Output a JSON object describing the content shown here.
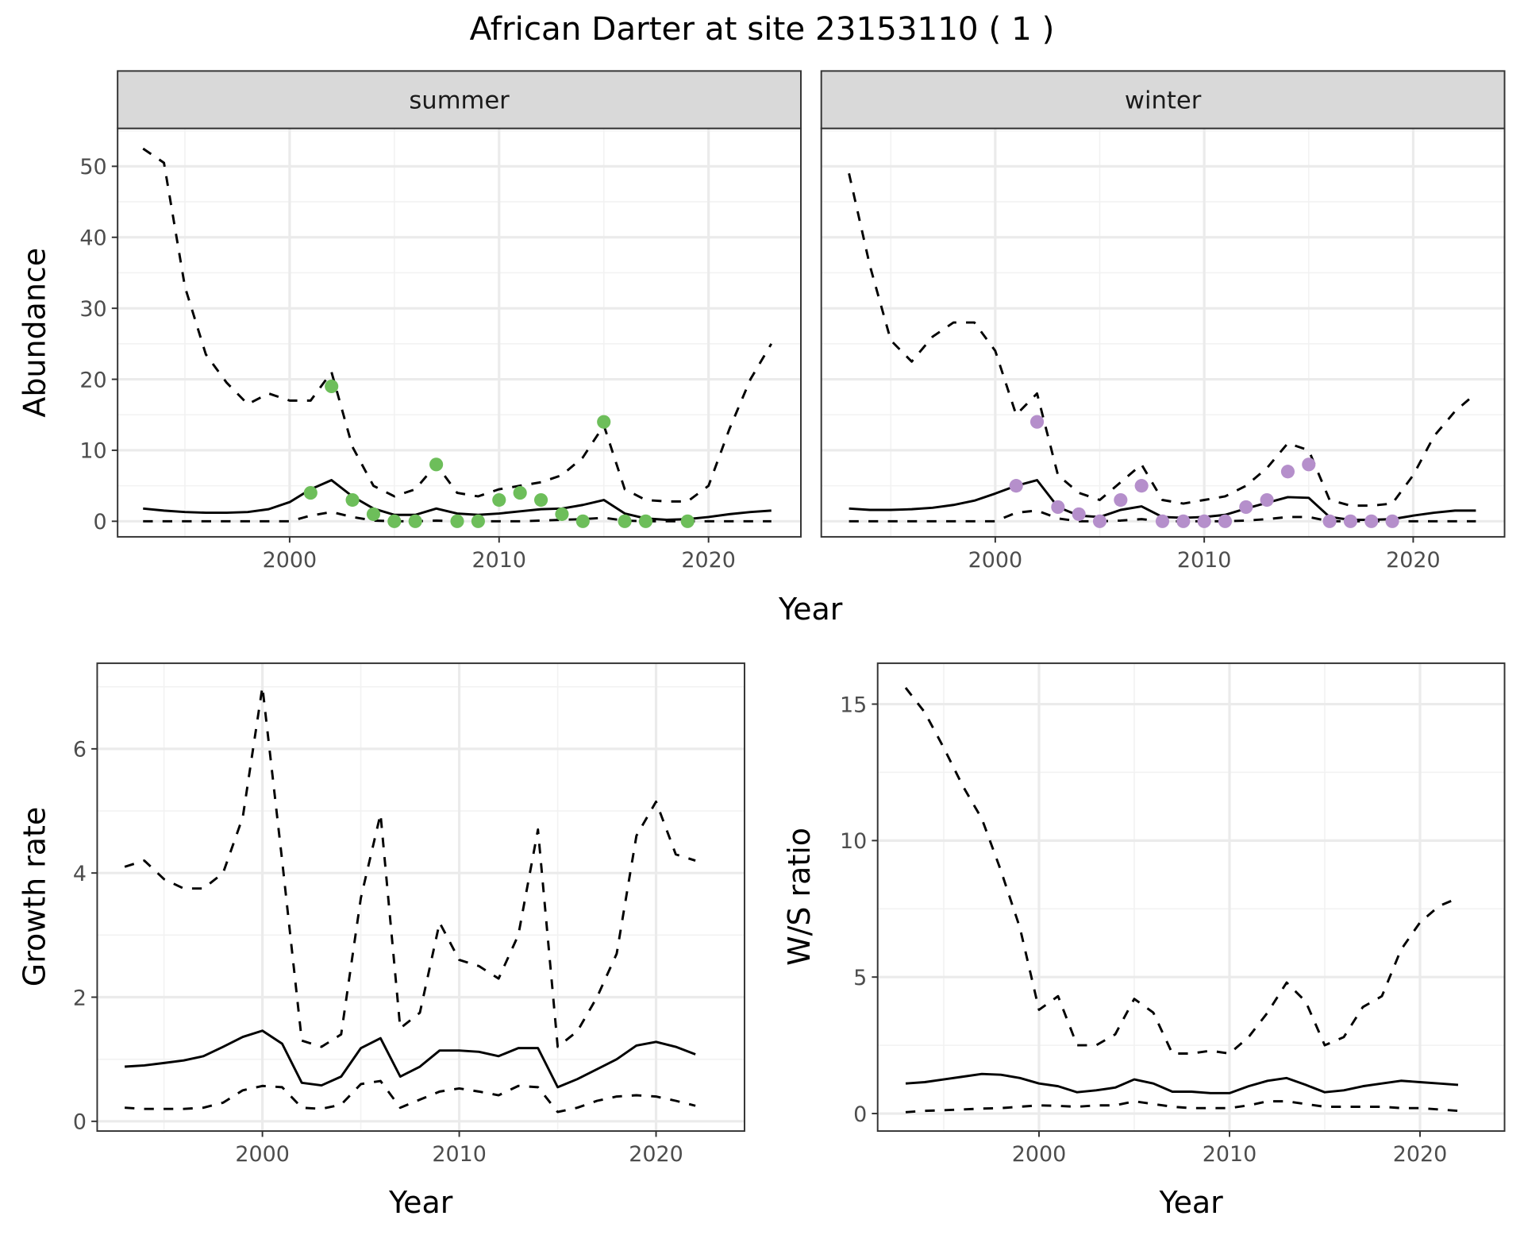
{
  "chart_data": [
    {
      "type": "line",
      "title": "African Darter at site 23153110 ( 1 )",
      "facet": "summer",
      "xlabel": "Year",
      "ylabel": "Abundance",
      "xlim": [
        1993,
        2023
      ],
      "ylim": [
        0,
        55
      ],
      "xticks": [
        2000,
        2010,
        2020
      ],
      "yticks": [
        0,
        10,
        20,
        30,
        40,
        50
      ],
      "grid": true,
      "x": [
        1993,
        1994,
        1995,
        1996,
        1997,
        1998,
        1999,
        2000,
        2001,
        2002,
        2003,
        2004,
        2005,
        2006,
        2007,
        2008,
        2009,
        2010,
        2011,
        2012,
        2013,
        2014,
        2015,
        2016,
        2017,
        2018,
        2019,
        2020,
        2021,
        2022,
        2023
      ],
      "series": [
        {
          "name": "upper",
          "style": "dashed",
          "values": [
            52.5,
            50.5,
            33,
            23.5,
            19.5,
            16.5,
            18,
            17,
            17,
            21,
            10.5,
            5,
            3.5,
            4.5,
            8,
            4,
            3.5,
            4.5,
            5,
            5.5,
            6.5,
            9,
            13.5,
            4.5,
            3,
            2.8,
            2.8,
            5,
            13,
            20,
            25
          ]
        },
        {
          "name": "mean",
          "style": "solid",
          "values": [
            1.8,
            1.5,
            1.3,
            1.2,
            1.2,
            1.3,
            1.7,
            2.7,
            4.5,
            5.8,
            3.5,
            1.8,
            0.9,
            0.9,
            1.8,
            1.1,
            0.9,
            1.1,
            1.4,
            1.7,
            1.8,
            2.3,
            3,
            1.1,
            0.4,
            0.2,
            0.3,
            0.6,
            1,
            1.3,
            1.5
          ]
        },
        {
          "name": "lower",
          "style": "dashed",
          "values": [
            0,
            0,
            0,
            0,
            0,
            0,
            0,
            0,
            0.8,
            1.3,
            0.6,
            0.1,
            0,
            0,
            0.1,
            0,
            0,
            0,
            0,
            0.1,
            0.2,
            0.3,
            0.5,
            0.1,
            0,
            0,
            0,
            0,
            0,
            0,
            0
          ]
        }
      ],
      "points": {
        "color": "#6DBE5A",
        "x": [
          2001,
          2002,
          2003,
          2004,
          2005,
          2006,
          2007,
          2008,
          2009,
          2010,
          2011,
          2012,
          2013,
          2014,
          2015,
          2016,
          2017,
          2019
        ],
        "y": [
          4,
          19,
          3,
          1,
          0,
          0,
          8,
          0,
          0,
          3,
          4,
          3,
          1,
          0,
          14,
          0,
          0,
          0
        ]
      }
    },
    {
      "type": "line",
      "facet": "winter",
      "xlabel": "Year",
      "ylabel": "Abundance",
      "xlim": [
        1993,
        2023
      ],
      "ylim": [
        0,
        55
      ],
      "xticks": [
        2000,
        2010,
        2020
      ],
      "yticks": [
        0,
        10,
        20,
        30,
        40,
        50
      ],
      "grid": true,
      "x": [
        1993,
        1994,
        1995,
        1996,
        1997,
        1998,
        1999,
        2000,
        2001,
        2002,
        2003,
        2004,
        2005,
        2006,
        2007,
        2008,
        2009,
        2010,
        2011,
        2012,
        2013,
        2014,
        2015,
        2016,
        2017,
        2018,
        2019,
        2020,
        2021,
        2022,
        2023
      ],
      "series": [
        {
          "name": "upper",
          "style": "dashed",
          "values": [
            49,
            36,
            25.5,
            22.5,
            26,
            28,
            28,
            24,
            15,
            18,
            6.5,
            4,
            3,
            5.5,
            8,
            3,
            2.5,
            3,
            3.5,
            5,
            7.5,
            11,
            10,
            3,
            2.2,
            2.2,
            2.5,
            6.5,
            12,
            15.5,
            18
          ]
        },
        {
          "name": "mean",
          "style": "solid",
          "values": [
            1.8,
            1.6,
            1.6,
            1.7,
            1.9,
            2.3,
            2.9,
            3.9,
            5,
            5.8,
            2,
            0.8,
            0.6,
            1.6,
            2.1,
            0.6,
            0.5,
            0.6,
            0.9,
            1.8,
            2.6,
            3.4,
            3.3,
            0.6,
            0.2,
            0.2,
            0.3,
            0.8,
            1.2,
            1.5,
            1.5
          ]
        },
        {
          "name": "lower",
          "style": "dashed",
          "values": [
            0,
            0,
            0,
            0,
            0,
            0,
            0,
            0,
            1.2,
            1.5,
            0.4,
            0,
            0,
            0.1,
            0.3,
            0,
            0,
            0,
            0,
            0.1,
            0.3,
            0.6,
            0.6,
            0,
            0,
            0,
            0,
            0,
            0,
            0,
            0
          ]
        }
      ],
      "points": {
        "color": "#B58FCB",
        "x": [
          2001,
          2002,
          2003,
          2004,
          2005,
          2006,
          2007,
          2008,
          2009,
          2010,
          2011,
          2012,
          2013,
          2014,
          2015,
          2016,
          2017,
          2018,
          2019
        ],
        "y": [
          5,
          14,
          2,
          1,
          0,
          3,
          5,
          0,
          0,
          0,
          0,
          2,
          3,
          7,
          8,
          0,
          0,
          0,
          0
        ]
      }
    },
    {
      "type": "line",
      "xlabel": "Year",
      "ylabel": "Growth rate",
      "xlim": [
        1993,
        2022
      ],
      "ylim": [
        0,
        7
      ],
      "xticks": [
        2000,
        2010,
        2020
      ],
      "yticks": [
        0,
        2,
        4,
        6
      ],
      "grid": true,
      "x": [
        1993,
        1994,
        1995,
        1996,
        1997,
        1998,
        1999,
        2000,
        2001,
        2002,
        2003,
        2004,
        2005,
        2006,
        2007,
        2008,
        2009,
        2010,
        2011,
        2012,
        2013,
        2014,
        2015,
        2016,
        2017,
        2018,
        2019,
        2020,
        2021,
        2022
      ],
      "series": [
        {
          "name": "upper",
          "style": "dashed",
          "values": [
            4.1,
            4.2,
            3.9,
            3.75,
            3.75,
            4.0,
            4.9,
            7.0,
            4.2,
            1.3,
            1.2,
            1.4,
            3.6,
            4.95,
            1.5,
            1.75,
            3.2,
            2.6,
            2.5,
            2.3,
            3.0,
            4.7,
            1.2,
            1.45,
            2.0,
            2.7,
            4.6,
            5.15,
            4.3,
            4.2
          ]
        },
        {
          "name": "mean",
          "style": "solid",
          "values": [
            0.88,
            0.9,
            0.94,
            0.98,
            1.05,
            1.2,
            1.36,
            1.46,
            1.25,
            0.62,
            0.58,
            0.72,
            1.18,
            1.34,
            0.72,
            0.88,
            1.14,
            1.14,
            1.12,
            1.05,
            1.18,
            1.18,
            0.55,
            0.68,
            0.84,
            1.0,
            1.22,
            1.28,
            1.2,
            1.08
          ]
        },
        {
          "name": "lower",
          "style": "dashed",
          "values": [
            0.22,
            0.2,
            0.2,
            0.2,
            0.22,
            0.3,
            0.5,
            0.57,
            0.55,
            0.22,
            0.2,
            0.27,
            0.6,
            0.65,
            0.22,
            0.35,
            0.48,
            0.53,
            0.48,
            0.42,
            0.57,
            0.55,
            0.15,
            0.22,
            0.33,
            0.4,
            0.42,
            0.4,
            0.33,
            0.25
          ]
        }
      ]
    },
    {
      "type": "line",
      "xlabel": "Year",
      "ylabel": "W/S ratio",
      "xlim": [
        1993,
        2022
      ],
      "ylim": [
        0,
        16
      ],
      "xticks": [
        2000,
        2010,
        2020
      ],
      "yticks": [
        0,
        5,
        10,
        15
      ],
      "grid": true,
      "x": [
        1993,
        1994,
        1995,
        1996,
        1997,
        1998,
        1999,
        2000,
        2001,
        2002,
        2003,
        2004,
        2005,
        2006,
        2007,
        2008,
        2009,
        2010,
        2011,
        2012,
        2013,
        2014,
        2015,
        2016,
        2017,
        2018,
        2019,
        2020,
        2021,
        2022
      ],
      "series": [
        {
          "name": "upper",
          "style": "dashed",
          "values": [
            15.6,
            14.7,
            13.4,
            12,
            10.8,
            8.9,
            6.8,
            3.8,
            4.3,
            2.5,
            2.5,
            2.9,
            4.2,
            3.7,
            2.2,
            2.2,
            2.3,
            2.2,
            2.8,
            3.7,
            4.8,
            4.1,
            2.5,
            2.8,
            3.9,
            4.3,
            6.0,
            7.0,
            7.6,
            7.9
          ]
        },
        {
          "name": "mean",
          "style": "solid",
          "values": [
            1.1,
            1.15,
            1.25,
            1.35,
            1.45,
            1.42,
            1.3,
            1.1,
            1.0,
            0.78,
            0.85,
            0.95,
            1.25,
            1.1,
            0.8,
            0.8,
            0.75,
            0.75,
            1.0,
            1.2,
            1.3,
            1.05,
            0.78,
            0.85,
            1.0,
            1.1,
            1.2,
            1.15,
            1.1,
            1.05
          ]
        },
        {
          "name": "lower",
          "style": "dashed",
          "values": [
            0.05,
            0.1,
            0.12,
            0.15,
            0.18,
            0.2,
            0.25,
            0.3,
            0.28,
            0.25,
            0.3,
            0.3,
            0.45,
            0.35,
            0.25,
            0.2,
            0.2,
            0.2,
            0.3,
            0.45,
            0.45,
            0.35,
            0.25,
            0.25,
            0.25,
            0.25,
            0.2,
            0.2,
            0.15,
            0.1
          ]
        }
      ]
    }
  ]
}
